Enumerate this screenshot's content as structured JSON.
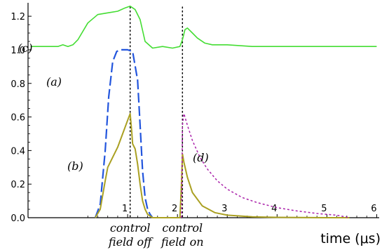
{
  "chart_data": {
    "type": "line",
    "title": "",
    "xlabel": "time (μs)",
    "ylabel": "",
    "xlim": [
      -1.0,
      6.05
    ],
    "ylim": [
      0,
      1.28
    ],
    "x_ticks": [
      1,
      2,
      3,
      4,
      5,
      6
    ],
    "y_ticks": [
      0.0,
      0.2,
      0.4,
      0.6,
      0.8,
      1.0,
      1.2
    ],
    "y_tick_labels": [
      "0.0",
      "0.2",
      "0.4",
      "0.6",
      "0.8",
      "1.0",
      "1.2"
    ],
    "grid": false,
    "vertical_markers": [
      {
        "x": 1.05,
        "note": [
          "control",
          "field off"
        ]
      },
      {
        "x": 2.1,
        "note": [
          "control",
          "field on"
        ]
      }
    ],
    "series": [
      {
        "name": "(c)",
        "color": "#44dd33",
        "style": "solid",
        "x": [
          -0.95,
          -0.7,
          -0.4,
          -0.3,
          -0.2,
          -0.1,
          0.0,
          0.2,
          0.4,
          0.6,
          0.8,
          0.95,
          1.05,
          1.15,
          1.25,
          1.35,
          1.5,
          1.7,
          1.9,
          2.05,
          2.1,
          2.15,
          2.2,
          2.3,
          2.4,
          2.55,
          2.7,
          3.0,
          3.5,
          4.0,
          4.5,
          5.0,
          5.5,
          6.0
        ],
        "y": [
          1.02,
          1.02,
          1.02,
          1.03,
          1.02,
          1.03,
          1.06,
          1.16,
          1.21,
          1.22,
          1.23,
          1.25,
          1.26,
          1.24,
          1.18,
          1.05,
          1.01,
          1.02,
          1.01,
          1.02,
          1.06,
          1.12,
          1.13,
          1.1,
          1.07,
          1.04,
          1.03,
          1.03,
          1.02,
          1.02,
          1.02,
          1.02,
          1.02,
          1.02
        ]
      },
      {
        "name": "(a)",
        "color": "#2255dd",
        "style": "long-dash",
        "x": [
          0.35,
          0.45,
          0.55,
          0.62,
          0.7,
          0.78,
          0.85,
          1.0,
          1.1,
          1.2,
          1.25,
          1.3,
          1.35,
          1.4,
          1.45,
          1.5
        ],
        "y": [
          0.0,
          0.08,
          0.4,
          0.72,
          0.93,
          0.99,
          1.0,
          1.0,
          0.99,
          0.82,
          0.55,
          0.28,
          0.12,
          0.05,
          0.02,
          0.0
        ]
      },
      {
        "name": "(b)",
        "color": "#aaa022",
        "style": "solid",
        "x": [
          0.35,
          0.45,
          0.55,
          0.6,
          0.7,
          0.8,
          0.9,
          1.0,
          1.05,
          1.08,
          1.1,
          1.15,
          1.2,
          1.25,
          1.3,
          1.35,
          1.4,
          1.45,
          1.5,
          2.05,
          2.08,
          2.1,
          2.13,
          2.2,
          2.3,
          2.5,
          2.75,
          3.0,
          3.5,
          4.0,
          4.5,
          5.0,
          5.45
        ],
        "y": [
          0.0,
          0.05,
          0.22,
          0.3,
          0.36,
          0.42,
          0.5,
          0.58,
          0.62,
          0.52,
          0.44,
          0.41,
          0.32,
          0.2,
          0.1,
          0.05,
          0.02,
          0.01,
          0.0,
          0.0,
          0.2,
          0.38,
          0.33,
          0.24,
          0.15,
          0.07,
          0.03,
          0.015,
          0.005,
          0.002,
          0.001,
          0.0,
          0.0
        ]
      },
      {
        "name": "(d)",
        "color": "#aa22aa",
        "style": "short-dash",
        "x": [
          2.08,
          2.1,
          2.13,
          2.2,
          2.3,
          2.45,
          2.6,
          2.8,
          3.0,
          3.3,
          3.6,
          4.0,
          4.4,
          4.8,
          5.2,
          5.45
        ],
        "y": [
          0.0,
          0.55,
          0.62,
          0.55,
          0.46,
          0.36,
          0.29,
          0.22,
          0.17,
          0.12,
          0.09,
          0.06,
          0.04,
          0.025,
          0.015,
          0.0
        ]
      }
    ]
  }
}
